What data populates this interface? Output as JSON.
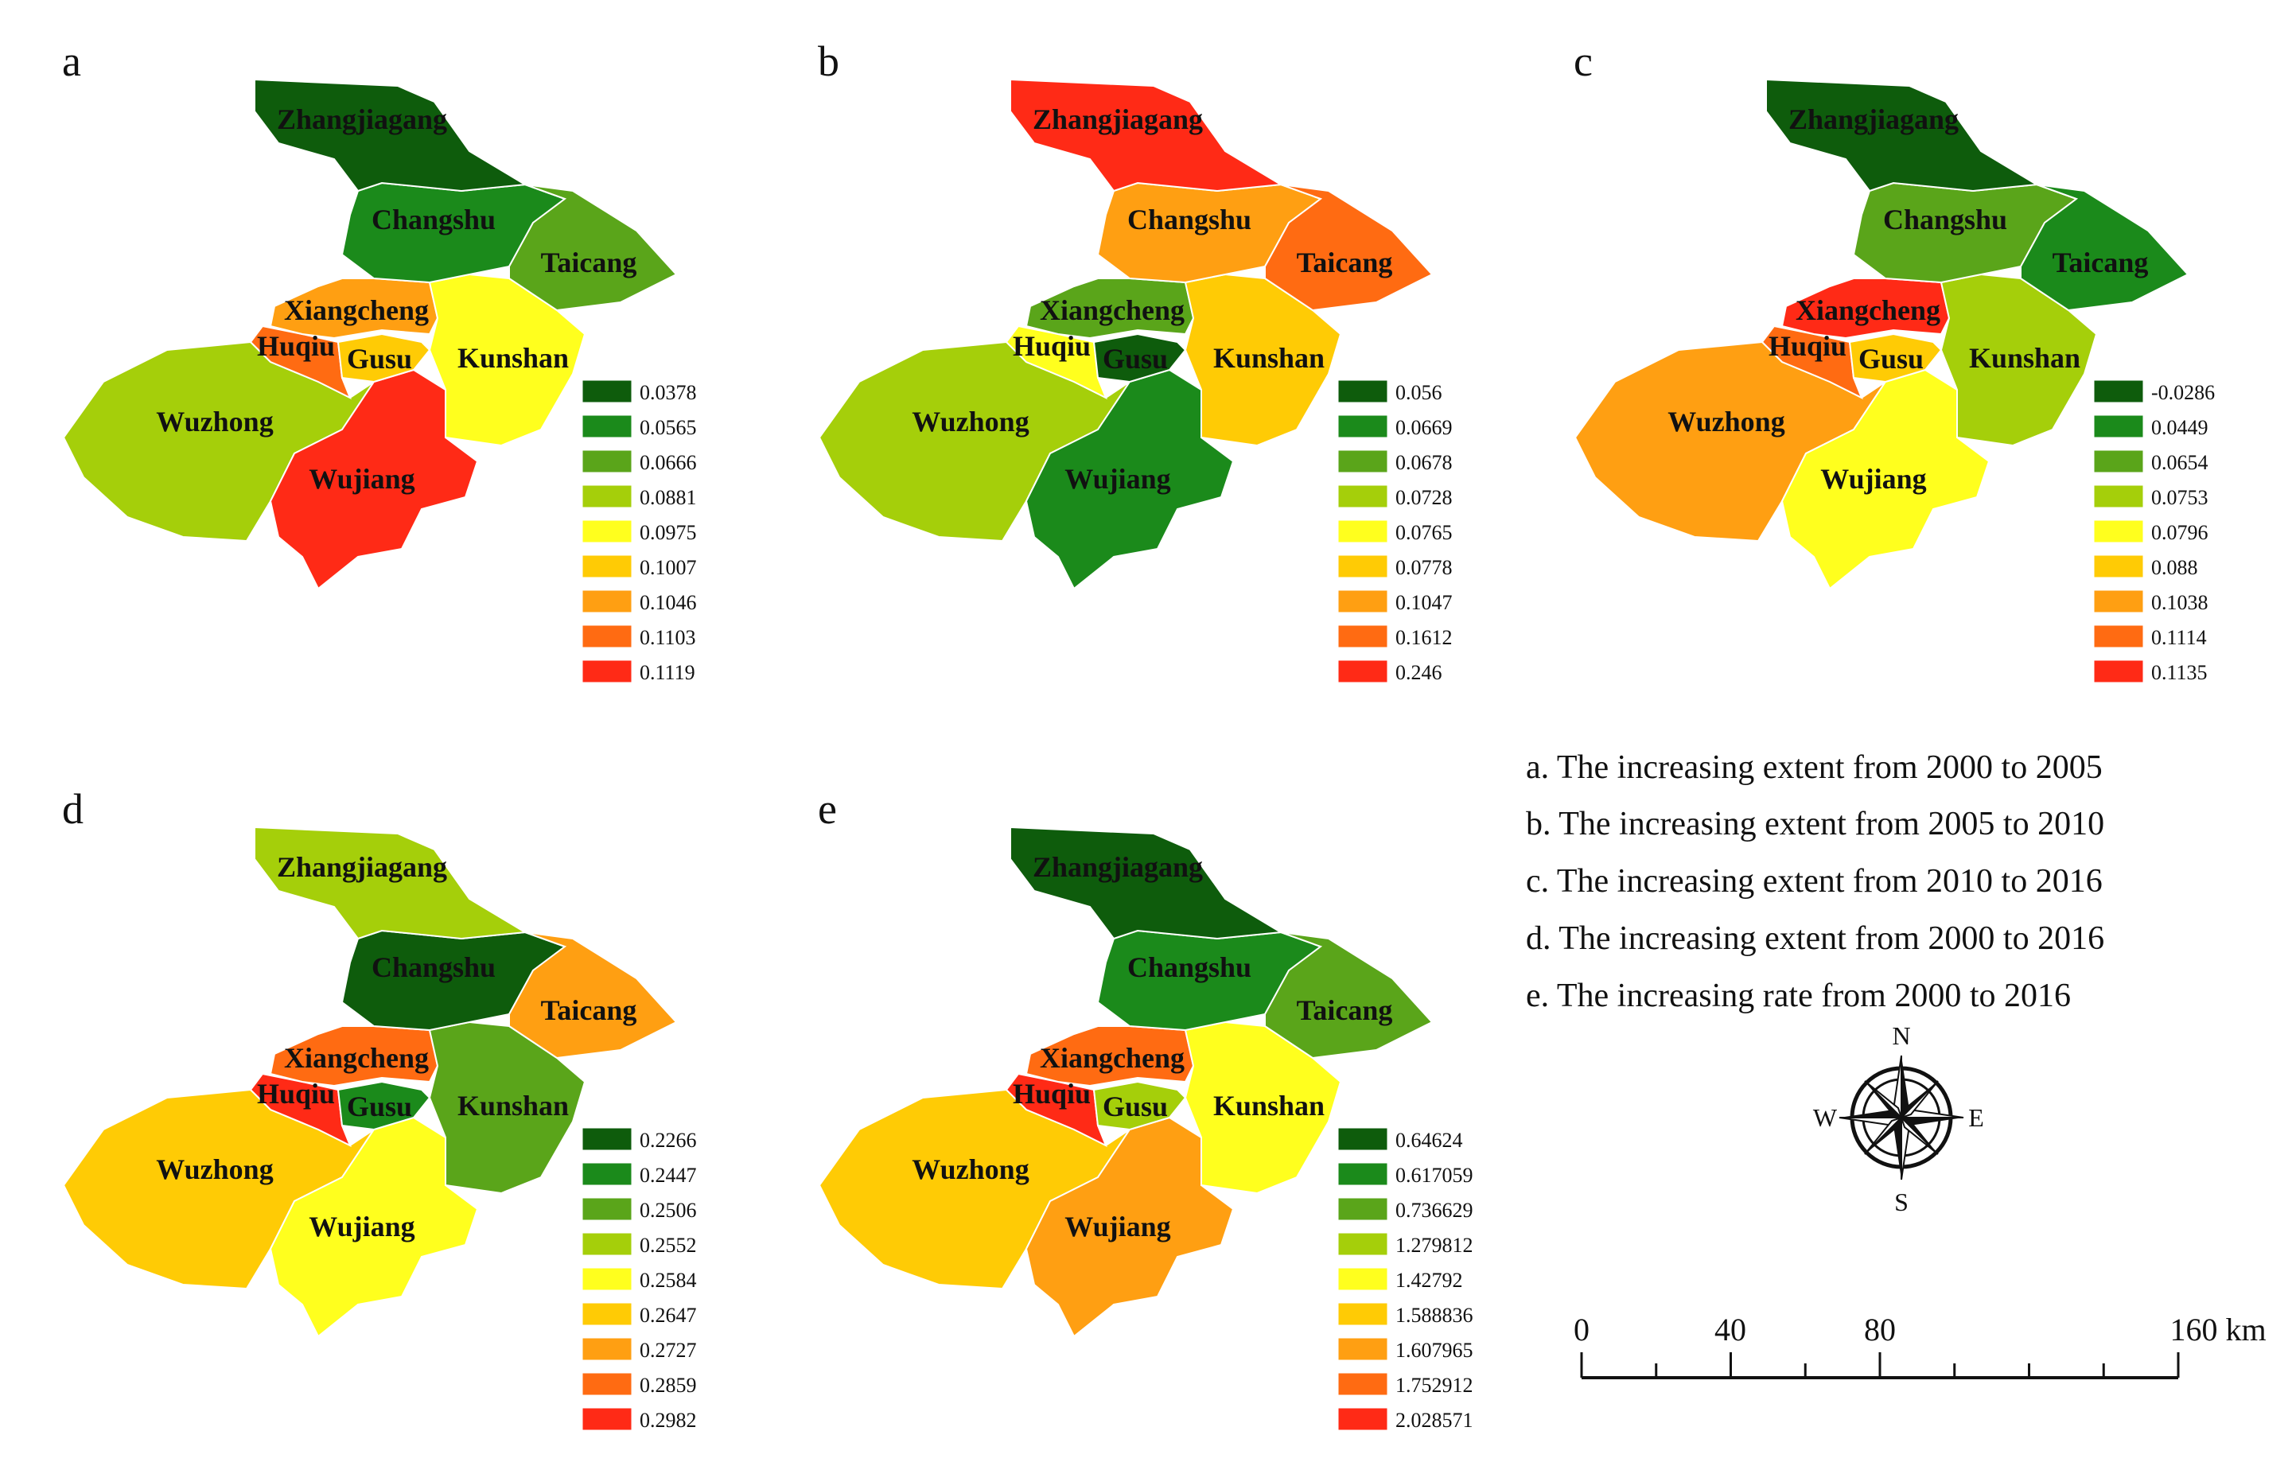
{
  "panels": [
    {
      "letter": "a",
      "legend": [
        "0.0378",
        "0.0565",
        "0.0666",
        "0.0881",
        "0.0975",
        "0.1007",
        "0.1046",
        "0.1103",
        "0.1119"
      ],
      "regions": [
        {
          "name": "Zhangjiagang",
          "class": 1
        },
        {
          "name": "Changshu",
          "class": 2
        },
        {
          "name": "Taicang",
          "class": 3
        },
        {
          "name": "Xiangcheng",
          "class": 7
        },
        {
          "name": "Huqiu",
          "class": 8
        },
        {
          "name": "Gusu",
          "class": 6
        },
        {
          "name": "Kunshan",
          "class": 5
        },
        {
          "name": "Wuzhong",
          "class": 4
        },
        {
          "name": "Wujiang",
          "class": 9
        }
      ]
    },
    {
      "letter": "b",
      "legend": [
        "0.056",
        "0.0669",
        "0.0678",
        "0.0728",
        "0.0765",
        "0.0778",
        "0.1047",
        "0.1612",
        "0.246"
      ],
      "regions": [
        {
          "name": "Zhangjiagang",
          "class": 9
        },
        {
          "name": "Changshu",
          "class": 7
        },
        {
          "name": "Taicang",
          "class": 8
        },
        {
          "name": "Xiangcheng",
          "class": 3
        },
        {
          "name": "Huqiu",
          "class": 5
        },
        {
          "name": "Gusu",
          "class": 1
        },
        {
          "name": "Kunshan",
          "class": 6
        },
        {
          "name": "Wuzhong",
          "class": 4
        },
        {
          "name": "Wujiang",
          "class": 2
        }
      ]
    },
    {
      "letter": "c",
      "legend": [
        "-0.0286",
        "0.0449",
        "0.0654",
        "0.0753",
        "0.0796",
        "0.088",
        "0.1038",
        "0.1114",
        "0.1135"
      ],
      "regions": [
        {
          "name": "Zhangjiagang",
          "class": 1
        },
        {
          "name": "Changshu",
          "class": 3
        },
        {
          "name": "Taicang",
          "class": 2
        },
        {
          "name": "Xiangcheng",
          "class": 9
        },
        {
          "name": "Huqiu",
          "class": 8
        },
        {
          "name": "Gusu",
          "class": 6
        },
        {
          "name": "Kunshan",
          "class": 4
        },
        {
          "name": "Wuzhong",
          "class": 7
        },
        {
          "name": "Wujiang",
          "class": 5
        }
      ]
    },
    {
      "letter": "d",
      "legend": [
        "0.2266",
        "0.2447",
        "0.2506",
        "0.2552",
        "0.2584",
        "0.2647",
        "0.2727",
        "0.2859",
        "0.2982"
      ],
      "regions": [
        {
          "name": "Zhangjiagang",
          "class": 4
        },
        {
          "name": "Changshu",
          "class": 1
        },
        {
          "name": "Taicang",
          "class": 7
        },
        {
          "name": "Xiangcheng",
          "class": 8
        },
        {
          "name": "Huqiu",
          "class": 9
        },
        {
          "name": "Gusu",
          "class": 2
        },
        {
          "name": "Kunshan",
          "class": 3
        },
        {
          "name": "Wuzhong",
          "class": 6
        },
        {
          "name": "Wujiang",
          "class": 5
        }
      ]
    },
    {
      "letter": "e",
      "legend": [
        "0.64624",
        "0.617059",
        "0.736629",
        "1.279812",
        "1.42792",
        "1.588836",
        "1.607965",
        "1.752912",
        "2.028571"
      ],
      "regions": [
        {
          "name": "Zhangjiagang",
          "class": 1
        },
        {
          "name": "Changshu",
          "class": 2
        },
        {
          "name": "Taicang",
          "class": 3
        },
        {
          "name": "Xiangcheng",
          "class": 8
        },
        {
          "name": "Huqiu",
          "class": 9
        },
        {
          "name": "Gusu",
          "class": 4
        },
        {
          "name": "Kunshan",
          "class": 5
        },
        {
          "name": "Wuzhong",
          "class": 6
        },
        {
          "name": "Wujiang",
          "class": 7
        }
      ]
    }
  ],
  "class_colors": [
    "#0e5c0c",
    "#1b8a1b",
    "#5aa51a",
    "#a5cf0a",
    "#ffff1e",
    "#ffcb05",
    "#ff9f12",
    "#ff6b12",
    "#ff2a16"
  ],
  "captions": [
    "a. The increasing extent from 2000 to 2005",
    "b. The  increasing extent from 2005 to 2010",
    "c. The  increasing extent from 2010 to 2016",
    "d. The  increasing extent from 2000 to 2016",
    "e. The  increasing rate from 2000 to 2016"
  ],
  "compass": {
    "n": "N",
    "s": "S",
    "e": "E",
    "w": "W"
  },
  "scale_bar": {
    "ticks": [
      "0",
      "40",
      "80",
      "160 km"
    ]
  }
}
